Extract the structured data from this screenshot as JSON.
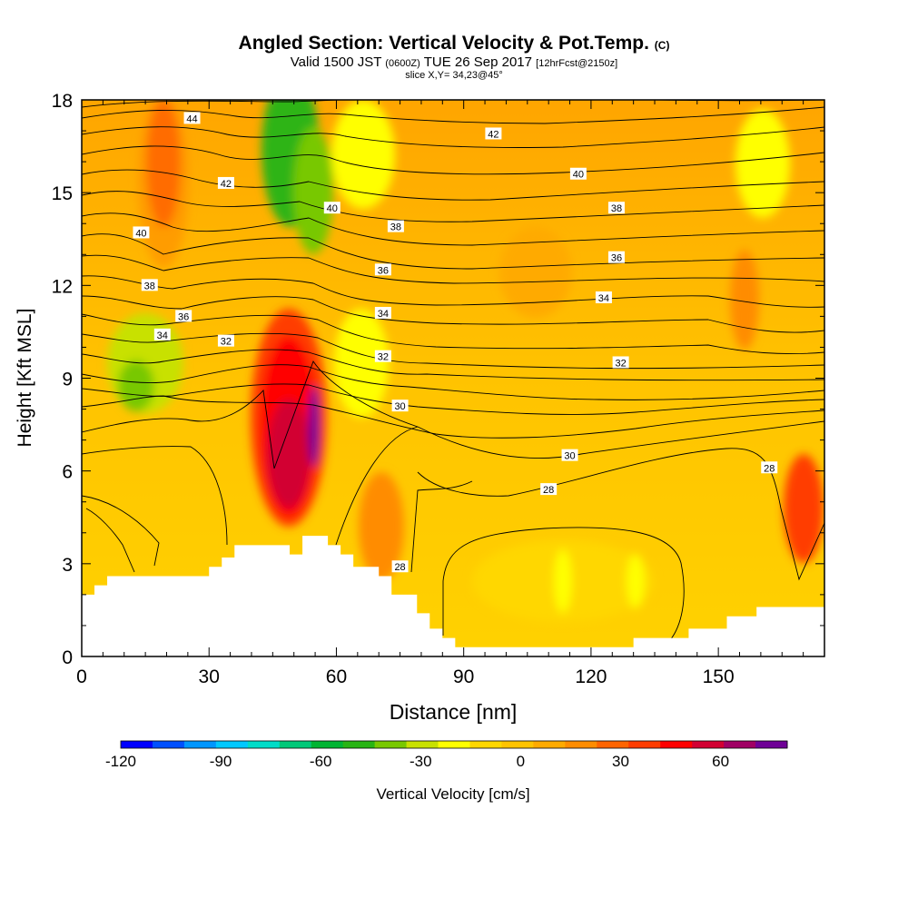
{
  "header": {
    "title": "Angled Section: Vertical Velocity & Pot.Temp.",
    "title_unit": "(C)",
    "valid_prefix": "Valid 1500 JST",
    "valid_utc": "(0600Z)",
    "valid_date": "TUE 26 Sep 2017",
    "forecast_info": "[12hrFcst@2150z]",
    "slice_info": "slice X,Y= 34,23@45°"
  },
  "chart_data": {
    "type": "heatmap",
    "xlabel": "Distance [nm]",
    "ylabel": "Height [Kft MSL]",
    "xlim": [
      0,
      175
    ],
    "ylim": [
      0,
      18
    ],
    "x_ticks": [
      0,
      30,
      60,
      90,
      120,
      150
    ],
    "y_ticks": [
      0,
      3,
      6,
      9,
      12,
      15,
      18
    ],
    "x_tick_labels": [
      "0",
      "30",
      "60",
      "90",
      "120",
      "150"
    ],
    "y_tick_labels": [
      "0",
      "3",
      "6",
      "9",
      "12",
      "15",
      "18"
    ],
    "colorbar": {
      "label": "Vertical Velocity [cm/s]",
      "min": -120,
      "max": 80,
      "step": 10,
      "tick_values": [
        -120,
        -90,
        -60,
        -30,
        0,
        30,
        60
      ],
      "tick_labels": [
        "-120",
        "-90",
        "-60",
        "-30",
        "0",
        "30",
        "60"
      ],
      "colors": [
        "#0000ff",
        "#0050ff",
        "#0096ff",
        "#00c8ff",
        "#00dcc8",
        "#00c878",
        "#00b432",
        "#28b414",
        "#78c800",
        "#c8e100",
        "#ffff00",
        "#ffd700",
        "#ffc300",
        "#ffaa00",
        "#ff8c00",
        "#ff6400",
        "#ff3c00",
        "#ff0000",
        "#d20032",
        "#a00064",
        "#6e0096"
      ]
    },
    "terrain": [
      [
        0,
        2
      ],
      [
        3,
        2
      ],
      [
        3,
        2.3
      ],
      [
        6,
        2.3
      ],
      [
        6,
        2.6
      ],
      [
        30,
        2.6
      ],
      [
        30,
        2.9
      ],
      [
        33,
        2.9
      ],
      [
        33,
        3.2
      ],
      [
        36,
        3.2
      ],
      [
        36,
        3.6
      ],
      [
        49,
        3.6
      ],
      [
        49,
        3.3
      ],
      [
        52,
        3.3
      ],
      [
        52,
        3.9
      ],
      [
        58,
        3.9
      ],
      [
        58,
        3.6
      ],
      [
        61,
        3.6
      ],
      [
        61,
        3.3
      ],
      [
        64,
        3.3
      ],
      [
        64,
        2.9
      ],
      [
        70,
        2.9
      ],
      [
        70,
        2.6
      ],
      [
        73,
        2.6
      ],
      [
        73,
        2
      ],
      [
        79,
        2
      ],
      [
        79,
        1.4
      ],
      [
        82,
        1.4
      ],
      [
        82,
        0.9
      ],
      [
        85,
        0.9
      ],
      [
        85,
        0.6
      ],
      [
        88,
        0.6
      ],
      [
        88,
        0.3
      ],
      [
        130,
        0.3
      ],
      [
        130,
        0.6
      ],
      [
        143,
        0.6
      ],
      [
        143,
        0.9
      ],
      [
        152,
        0.9
      ],
      [
        152,
        1.3
      ],
      [
        159,
        1.3
      ],
      [
        159,
        1.6
      ],
      [
        175,
        1.6
      ]
    ],
    "contour_labels": [
      {
        "text": "44",
        "x": 26,
        "y": 17.4
      },
      {
        "text": "42",
        "x": 34,
        "y": 15.3
      },
      {
        "text": "42",
        "x": 97,
        "y": 16.9
      },
      {
        "text": "40",
        "x": 117,
        "y": 15.6
      },
      {
        "text": "40",
        "x": 14,
        "y": 13.7
      },
      {
        "text": "40",
        "x": 59,
        "y": 14.5
      },
      {
        "text": "38",
        "x": 74,
        "y": 13.9
      },
      {
        "text": "38",
        "x": 126,
        "y": 14.5
      },
      {
        "text": "38",
        "x": 16,
        "y": 12.0
      },
      {
        "text": "36",
        "x": 24,
        "y": 11.0
      },
      {
        "text": "36",
        "x": 71,
        "y": 12.5
      },
      {
        "text": "36",
        "x": 126,
        "y": 12.9
      },
      {
        "text": "34",
        "x": 19,
        "y": 10.4
      },
      {
        "text": "34",
        "x": 71,
        "y": 11.1
      },
      {
        "text": "34",
        "x": 123,
        "y": 11.6
      },
      {
        "text": "32",
        "x": 34,
        "y": 10.2
      },
      {
        "text": "32",
        "x": 71,
        "y": 9.7
      },
      {
        "text": "32",
        "x": 127,
        "y": 9.5
      },
      {
        "text": "30",
        "x": 75,
        "y": 8.1
      },
      {
        "text": "30",
        "x": 115,
        "y": 6.5
      },
      {
        "text": "28",
        "x": 110,
        "y": 5.4
      },
      {
        "text": "28",
        "x": 162,
        "y": 6.1
      },
      {
        "text": "28",
        "x": 75,
        "y": 2.9
      }
    ]
  }
}
